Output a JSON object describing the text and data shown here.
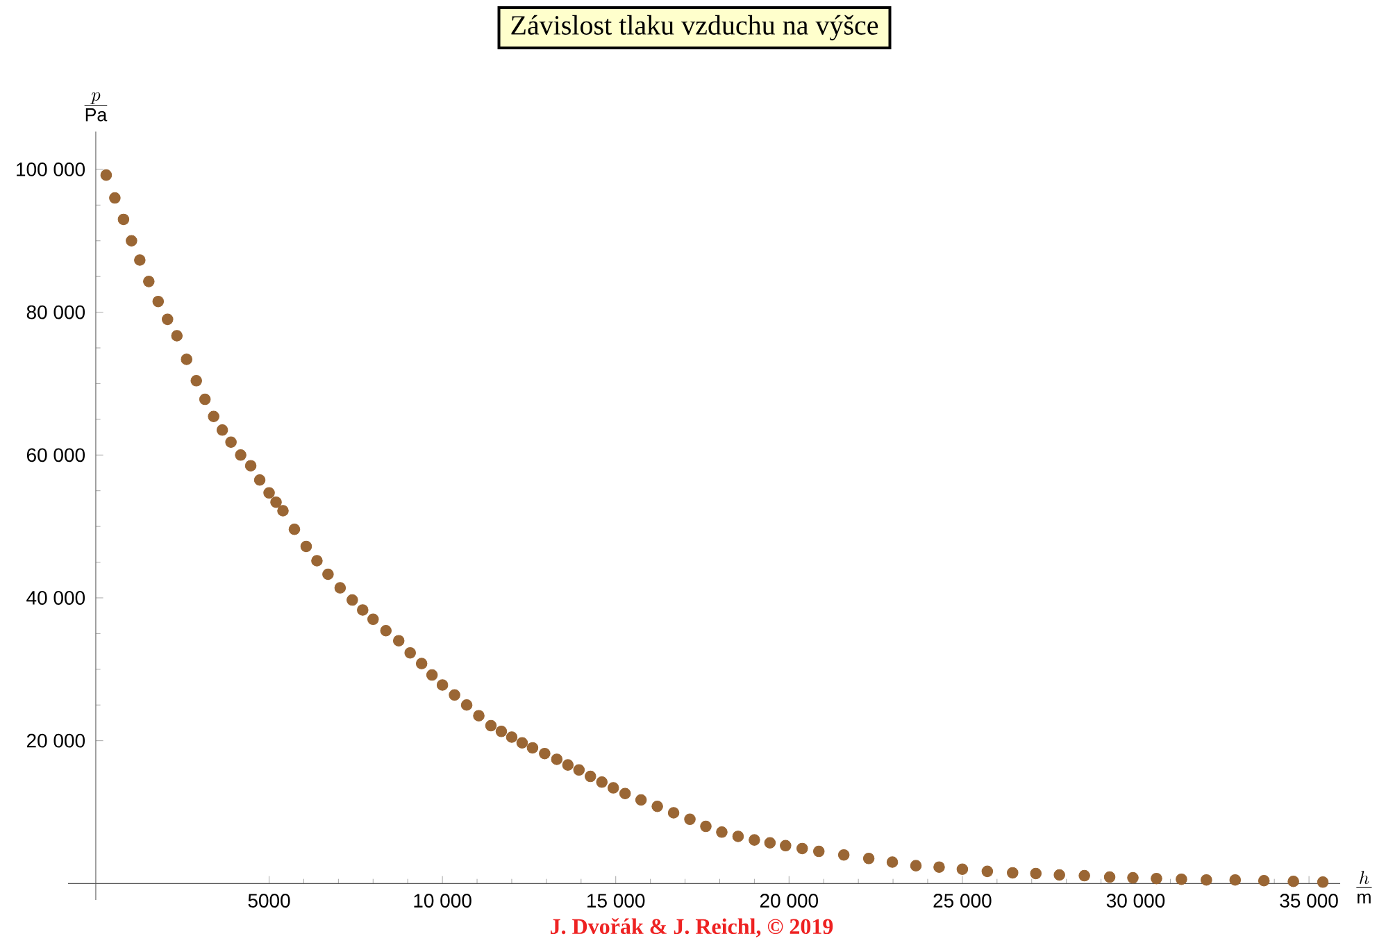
{
  "chart_data": {
    "type": "scatter",
    "title": "Závislost tlaku vzduchu na výšce",
    "xlabel": "\\frac{h}{\\mathrm{m}}",
    "ylabel": "\\frac{p}{\\mathrm{Pa}}",
    "annotations": [
      "J. Dvořák & J. Reichl, © 2019"
    ],
    "marker": "circle",
    "xlim": [
      -800,
      35900
    ],
    "ylim": [
      -2300,
      105300
    ],
    "xticks": [
      5000,
      {
        "value": 10000,
        "label": "10 000"
      },
      {
        "value": 15000,
        "label": "15 000"
      },
      {
        "value": 20000,
        "label": "20 000"
      },
      {
        "value": 25000,
        "label": "25 000"
      },
      {
        "value": 30000,
        "label": "30 000"
      },
      {
        "value": 35000,
        "label": "35 000"
      }
    ],
    "yticks": [
      {
        "value": 20000,
        "label": "20 000"
      },
      {
        "value": 40000,
        "label": "40 000"
      },
      {
        "value": 60000,
        "label": "60 000"
      },
      {
        "value": 80000,
        "label": "80 000"
      },
      {
        "value": 100000,
        "label": "100 000"
      }
    ],
    "series": [
      {
        "color": "#9a6634",
        "x": [
          300,
          550,
          800,
          1030,
          1270,
          1530,
          1800,
          2070,
          2340,
          2620,
          2900,
          3150,
          3400,
          3650,
          3900,
          4180,
          4470,
          4730,
          5000,
          5200,
          5400,
          5730,
          6070,
          6380,
          6700,
          7050,
          7400,
          7700,
          8000,
          8370,
          8740,
          9070,
          9400,
          9700,
          10000,
          10350,
          10700,
          11050,
          11400,
          11700,
          12000,
          12300,
          12600,
          12950,
          13300,
          13620,
          13940,
          14270,
          14600,
          14930,
          15270,
          15730,
          16200,
          16670,
          17140,
          17600,
          18060,
          18530,
          19000,
          19450,
          19900,
          20380,
          20860,
          21580,
          22300,
          22980,
          23660,
          24330,
          25000,
          25720,
          26450,
          27120,
          27800,
          28520,
          29250,
          29920,
          30600,
          31320,
          32040,
          32870,
          33700,
          34550,
          35400
        ],
        "values": [
          99200,
          96000,
          93000,
          90000,
          87300,
          84300,
          81500,
          79000,
          76700,
          73400,
          70400,
          67800,
          65400,
          63500,
          61800,
          60000,
          58500,
          56500,
          54700,
          53400,
          52200,
          49600,
          47200,
          45200,
          43300,
          41400,
          39700,
          38300,
          37000,
          35400,
          34000,
          32300,
          30800,
          29200,
          27800,
          26400,
          25000,
          23500,
          22100,
          21300,
          20500,
          19700,
          19000,
          18200,
          17400,
          16600,
          15900,
          15000,
          14200,
          13400,
          12600,
          11700,
          10800,
          9900,
          9000,
          8000,
          7200,
          6600,
          6100,
          5700,
          5300,
          4900,
          4500,
          4000,
          3500,
          3000,
          2500,
          2300,
          2000,
          1700,
          1500,
          1400,
          1200,
          1100,
          900,
          800,
          700,
          600,
          500,
          500,
          400,
          300,
          200
        ]
      }
    ]
  }
}
